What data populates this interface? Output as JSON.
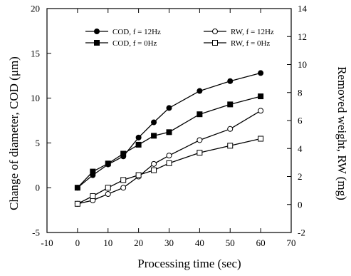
{
  "chart_data": {
    "type": "line",
    "title": "",
    "xlabel": "Processing time (sec)",
    "ylabel_left": "Change of diameter, COD (μm)",
    "ylabel_right": "Removed weight, RW (mg)",
    "xlim": [
      -10,
      70
    ],
    "ylim_left": [
      -5,
      20
    ],
    "ylim_right": [
      -2,
      14
    ],
    "xticks": [
      -10,
      0,
      10,
      20,
      30,
      40,
      50,
      60,
      70
    ],
    "yticks_left": [
      -5,
      0,
      5,
      10,
      15,
      20
    ],
    "yticks_right": [
      -2,
      0,
      2,
      4,
      6,
      8,
      10,
      12,
      14
    ],
    "grid": false,
    "legend_placement": "top",
    "series": [
      {
        "name": "COD, f = 12Hz",
        "axis": "left",
        "marker": "circle-filled",
        "x": [
          0,
          5,
          10,
          15,
          20,
          25,
          30,
          40,
          50,
          60
        ],
        "y": [
          0,
          1.4,
          2.6,
          3.5,
          5.6,
          7.3,
          8.9,
          10.8,
          11.9,
          12.8
        ]
      },
      {
        "name": "COD, f = 0Hz",
        "axis": "left",
        "marker": "square-filled",
        "x": [
          0,
          5,
          10,
          15,
          20,
          25,
          30,
          40,
          50,
          60
        ],
        "y": [
          0,
          1.8,
          2.7,
          3.8,
          4.8,
          5.8,
          6.2,
          8.2,
          9.3,
          10.2
        ]
      },
      {
        "name": "RW, f = 12Hz",
        "axis": "right",
        "marker": "circle-open",
        "x": [
          0,
          5,
          10,
          15,
          20,
          25,
          30,
          40,
          50,
          60
        ],
        "y": [
          0.05,
          0.3,
          0.75,
          1.2,
          2.0,
          2.9,
          3.5,
          4.6,
          5.4,
          6.7
        ]
      },
      {
        "name": "RW, f = 0Hz",
        "axis": "right",
        "marker": "square-open",
        "x": [
          0,
          5,
          10,
          15,
          20,
          25,
          30,
          40,
          50,
          60
        ],
        "y": [
          0.05,
          0.6,
          1.2,
          1.75,
          2.1,
          2.45,
          2.95,
          3.7,
          4.2,
          4.7
        ]
      }
    ],
    "colors": {
      "line": "#000000",
      "background": "#ffffff"
    }
  }
}
